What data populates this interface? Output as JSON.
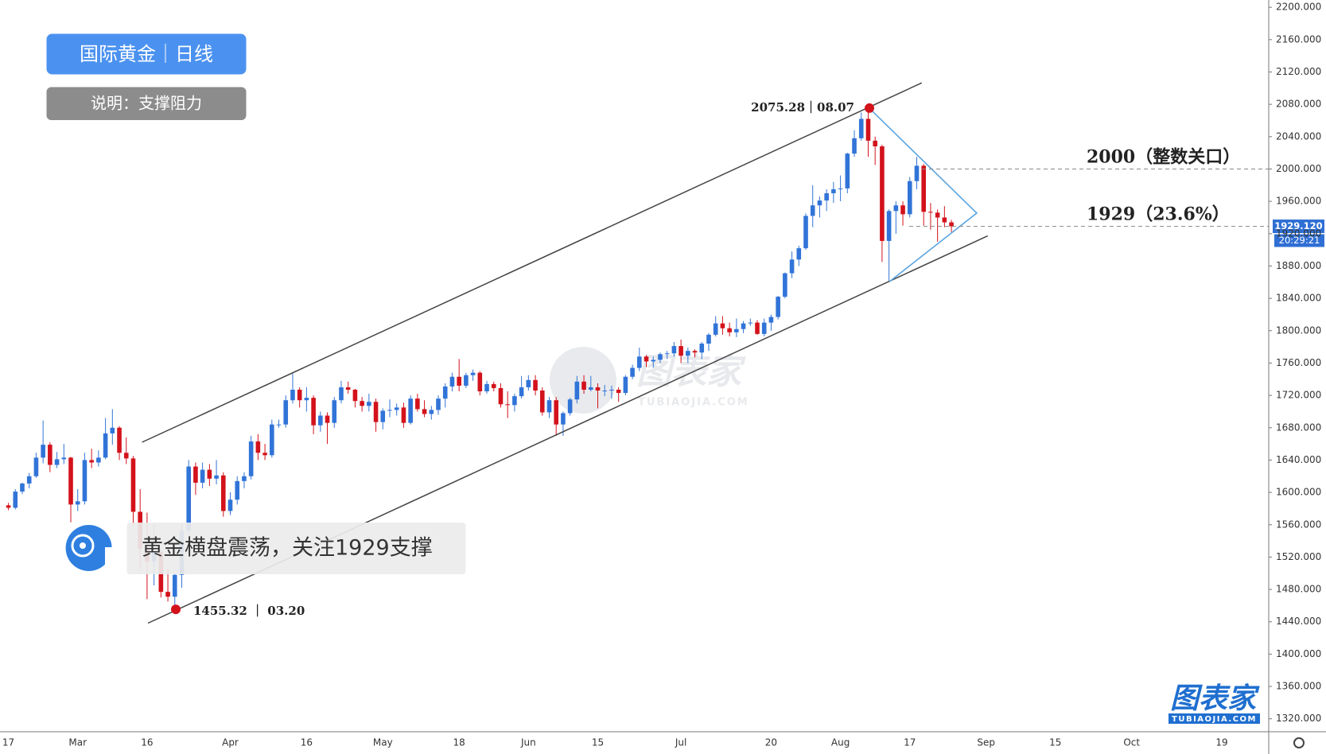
{
  "chart_data": {
    "type": "candlestick",
    "title": "国际黄金｜日线",
    "subtitle": "说明：支撑阻力",
    "caption": "黄金横盘震荡，关注1929支撑",
    "watermark": "图表家",
    "watermark_url": "TUBIAOJIA.COM",
    "up_color": "#3174d8",
    "down_color": "#d3121b",
    "grid": false,
    "ylim": [
      1304,
      2209
    ],
    "yticks": [
      {
        "value": 1320,
        "label": "1320.000"
      },
      {
        "value": 1360,
        "label": "1360.000"
      },
      {
        "value": 1400,
        "label": "1400.000"
      },
      {
        "value": 1440,
        "label": "1440.000"
      },
      {
        "value": 1480,
        "label": "1480.000"
      },
      {
        "value": 1520,
        "label": "1520.000"
      },
      {
        "value": 1560,
        "label": "1560.000"
      },
      {
        "value": 1600,
        "label": "1600.000"
      },
      {
        "value": 1640,
        "label": "1640.000"
      },
      {
        "value": 1680,
        "label": "1680.000"
      },
      {
        "value": 1720,
        "label": "1720.000"
      },
      {
        "value": 1760,
        "label": "1760.000"
      },
      {
        "value": 1800,
        "label": "1800.000"
      },
      {
        "value": 1840,
        "label": "1840.000"
      },
      {
        "value": 1880,
        "label": "1880.000"
      },
      {
        "value": 1920,
        "label": "1920.000"
      },
      {
        "value": 1960,
        "label": "1960.000"
      },
      {
        "value": 2000,
        "label": "2000.000"
      },
      {
        "value": 2040,
        "label": "2040.000"
      },
      {
        "value": 2080,
        "label": "2080.000"
      },
      {
        "value": 2120,
        "label": "2120.000"
      },
      {
        "value": 2160,
        "label": "2160.000"
      },
      {
        "value": 2200,
        "label": "2200.000"
      }
    ],
    "levels": [
      {
        "value": 2000,
        "label": "2000（整数关口）"
      },
      {
        "value": 1929,
        "label": "1929（23.6%）"
      }
    ],
    "last_price": {
      "value": 1929.12,
      "label": "1929.120"
    },
    "timer": "20:29:21",
    "annotations": [
      "2075.28｜08.07",
      "1455.32 ｜ 03.20"
    ],
    "categories": [
      "17",
      null,
      null,
      null,
      null,
      null,
      null,
      null,
      null,
      null,
      "Mar",
      null,
      null,
      null,
      null,
      null,
      null,
      null,
      null,
      null,
      "16",
      null,
      null,
      null,
      null,
      null,
      null,
      null,
      null,
      null,
      null,
      null,
      "Apr",
      null,
      null,
      null,
      null,
      null,
      null,
      null,
      null,
      null,
      null,
      "16",
      null,
      null,
      null,
      null,
      null,
      null,
      null,
      null,
      null,
      null,
      "May",
      null,
      null,
      null,
      null,
      null,
      null,
      null,
      null,
      null,
      null,
      "18",
      null,
      null,
      null,
      null,
      null,
      null,
      null,
      null,
      null,
      "Jun",
      null,
      null,
      null,
      null,
      null,
      null,
      null,
      null,
      null,
      "15",
      null,
      null,
      null,
      null,
      null,
      null,
      null,
      null,
      null,
      null,
      null,
      "Jul",
      null,
      null,
      null,
      null,
      null,
      null,
      null,
      null,
      null,
      null,
      null,
      null,
      "20",
      null,
      null,
      null,
      null,
      null,
      null,
      null,
      null,
      null,
      "Aug",
      null,
      null,
      null,
      null,
      null,
      null,
      null,
      null,
      null,
      "17",
      null,
      null,
      null,
      null,
      null,
      null,
      null,
      null,
      null,
      null,
      "Sep",
      null,
      null,
      null,
      null,
      null,
      null,
      null,
      null,
      null,
      "15",
      null,
      null,
      null,
      null,
      null,
      null,
      null,
      null,
      null,
      null,
      "Oct",
      null,
      null,
      null,
      null,
      null,
      null,
      null,
      null,
      null,
      null,
      null,
      null,
      "19",
      null,
      null,
      null,
      null,
      null,
      null
    ],
    "ohlc": [
      [
        1584,
        1587,
        1578,
        1581
      ],
      [
        1581,
        1604,
        1579,
        1601
      ],
      [
        1601,
        1612,
        1598,
        1611
      ],
      [
        1611,
        1624,
        1605,
        1620
      ],
      [
        1620,
        1649,
        1618,
        1643
      ],
      [
        1643,
        1689,
        1636,
        1659
      ],
      [
        1659,
        1662,
        1625,
        1634
      ],
      [
        1634,
        1650,
        1630,
        1641
      ],
      [
        1641,
        1660,
        1635,
        1643
      ],
      [
        1643,
        1644,
        1563,
        1585
      ],
      [
        1585,
        1604,
        1577,
        1589
      ],
      [
        1589,
        1649,
        1585,
        1640
      ],
      [
        1640,
        1654,
        1630,
        1637
      ],
      [
        1637,
        1652,
        1632,
        1643
      ],
      [
        1643,
        1692,
        1641,
        1673
      ],
      [
        1673,
        1703,
        1659,
        1680
      ],
      [
        1680,
        1682,
        1640,
        1649
      ],
      [
        1649,
        1668,
        1635,
        1642
      ],
      [
        1642,
        1645,
        1559,
        1576
      ],
      [
        1576,
        1604,
        1505,
        1530
      ],
      [
        1530,
        1575,
        1468,
        1514
      ],
      [
        1514,
        1560,
        1485,
        1526
      ],
      [
        1526,
        1530,
        1470,
        1477
      ],
      [
        1477,
        1505,
        1465,
        1471
      ],
      [
        1471,
        1500,
        1455.32,
        1498
      ],
      [
        1498,
        1562,
        1482,
        1553
      ],
      [
        1553,
        1640,
        1546,
        1632
      ],
      [
        1632,
        1637,
        1597,
        1612
      ],
      [
        1612,
        1637,
        1605,
        1628
      ],
      [
        1628,
        1635,
        1608,
        1617
      ],
      [
        1617,
        1640,
        1610,
        1621
      ],
      [
        1621,
        1625,
        1570,
        1577
      ],
      [
        1577,
        1600,
        1572,
        1591
      ],
      [
        1591,
        1620,
        1585,
        1614
      ],
      [
        1614,
        1625,
        1605,
        1620
      ],
      [
        1620,
        1670,
        1616,
        1663
      ],
      [
        1663,
        1672,
        1640,
        1649
      ],
      [
        1649,
        1660,
        1640,
        1646
      ],
      [
        1646,
        1690,
        1643,
        1684
      ],
      [
        1684,
        1690,
        1680,
        1684
      ],
      [
        1684,
        1720,
        1680,
        1714
      ],
      [
        1714,
        1747,
        1710,
        1727
      ],
      [
        1727,
        1730,
        1705,
        1714
      ],
      [
        1714,
        1730,
        1700,
        1717
      ],
      [
        1717,
        1720,
        1672,
        1683
      ],
      [
        1683,
        1700,
        1675,
        1695
      ],
      [
        1695,
        1699,
        1660,
        1686
      ],
      [
        1686,
        1718,
        1680,
        1714
      ],
      [
        1714,
        1738,
        1710,
        1730
      ],
      [
        1730,
        1737,
        1722,
        1727
      ],
      [
        1727,
        1728,
        1705,
        1713
      ],
      [
        1713,
        1718,
        1700,
        1707
      ],
      [
        1707,
        1722,
        1700,
        1712
      ],
      [
        1712,
        1716,
        1675,
        1687
      ],
      [
        1687,
        1704,
        1678,
        1701
      ],
      [
        1701,
        1715,
        1693,
        1702
      ],
      [
        1702,
        1710,
        1695,
        1705
      ],
      [
        1705,
        1711,
        1680,
        1686
      ],
      [
        1686,
        1720,
        1684,
        1716
      ],
      [
        1716,
        1722,
        1700,
        1703
      ],
      [
        1703,
        1714,
        1693,
        1697
      ],
      [
        1697,
        1707,
        1690,
        1702
      ],
      [
        1702,
        1720,
        1696,
        1716
      ],
      [
        1716,
        1735,
        1705,
        1731
      ],
      [
        1731,
        1748,
        1725,
        1743
      ],
      [
        1743,
        1765,
        1725,
        1732
      ],
      [
        1732,
        1748,
        1729,
        1745
      ],
      [
        1745,
        1752,
        1738,
        1748
      ],
      [
        1748,
        1750,
        1720,
        1725
      ],
      [
        1725,
        1738,
        1722,
        1734
      ],
      [
        1734,
        1737,
        1725,
        1729
      ],
      [
        1729,
        1735,
        1705,
        1709
      ],
      [
        1709,
        1725,
        1692,
        1708
      ],
      [
        1708,
        1722,
        1700,
        1719
      ],
      [
        1719,
        1744,
        1716,
        1730
      ],
      [
        1730,
        1745,
        1726,
        1739
      ],
      [
        1739,
        1745,
        1720,
        1726
      ],
      [
        1726,
        1730,
        1695,
        1699
      ],
      [
        1699,
        1718,
        1692,
        1714
      ],
      [
        1714,
        1718,
        1670,
        1684
      ],
      [
        1684,
        1700,
        1670,
        1698
      ],
      [
        1698,
        1717,
        1695,
        1715
      ],
      [
        1715,
        1744,
        1710,
        1737
      ],
      [
        1737,
        1745,
        1722,
        1727
      ],
      [
        1727,
        1744,
        1725,
        1730
      ],
      [
        1730,
        1735,
        1704,
        1726
      ],
      [
        1726,
        1733,
        1719,
        1726
      ],
      [
        1726,
        1732,
        1716,
        1727
      ],
      [
        1727,
        1730,
        1712,
        1723
      ],
      [
        1723,
        1745,
        1720,
        1743
      ],
      [
        1743,
        1758,
        1740,
        1754
      ],
      [
        1754,
        1779,
        1750,
        1768
      ],
      [
        1768,
        1770,
        1755,
        1762
      ],
      [
        1762,
        1768,
        1754,
        1764
      ],
      [
        1764,
        1773,
        1760,
        1771
      ],
      [
        1771,
        1775,
        1765,
        1772
      ],
      [
        1772,
        1786,
        1768,
        1781
      ],
      [
        1781,
        1789,
        1760,
        1769
      ],
      [
        1769,
        1779,
        1760,
        1775
      ],
      [
        1775,
        1777,
        1767,
        1773
      ],
      [
        1773,
        1786,
        1765,
        1784
      ],
      [
        1784,
        1797,
        1775,
        1795
      ],
      [
        1795,
        1818,
        1793,
        1809
      ],
      [
        1809,
        1818,
        1795,
        1803
      ],
      [
        1803,
        1810,
        1793,
        1798
      ],
      [
        1798,
        1815,
        1792,
        1802
      ],
      [
        1802,
        1812,
        1797,
        1809
      ],
      [
        1809,
        1815,
        1806,
        1810
      ],
      [
        1810,
        1813,
        1795,
        1796
      ],
      [
        1796,
        1815,
        1793,
        1810
      ],
      [
        1810,
        1820,
        1800,
        1817
      ],
      [
        1817,
        1843,
        1814,
        1842
      ],
      [
        1842,
        1872,
        1840,
        1871
      ],
      [
        1871,
        1898,
        1865,
        1888
      ],
      [
        1888,
        1905,
        1880,
        1902
      ],
      [
        1902,
        1945,
        1900,
        1942
      ],
      [
        1942,
        1980,
        1928,
        1955
      ],
      [
        1955,
        1966,
        1940,
        1961
      ],
      [
        1961,
        1975,
        1948,
        1970
      ],
      [
        1970,
        1984,
        1958,
        1975
      ],
      [
        1975,
        1992,
        1960,
        1976
      ],
      [
        1976,
        2020,
        1970,
        2019
      ],
      [
        2019,
        2048,
        2015,
        2038
      ],
      [
        2038,
        2070,
        2035,
        2062
      ],
      [
        2062,
        2075.28,
        2015,
        2035
      ],
      [
        2035,
        2040,
        2005,
        2028
      ],
      [
        2028,
        2030,
        1885,
        1911
      ],
      [
        1911,
        1950,
        1862,
        1948
      ],
      [
        1948,
        1960,
        1920,
        1955
      ],
      [
        1955,
        1960,
        1930,
        1944
      ],
      [
        1944,
        1990,
        1940,
        1985
      ],
      [
        1985,
        2015,
        1975,
        2004
      ],
      [
        2004,
        2006,
        1930,
        1947
      ],
      [
        1947,
        1958,
        1925,
        1946
      ],
      [
        1946,
        1950,
        1910,
        1940
      ],
      [
        1940,
        1954,
        1928,
        1934
      ],
      [
        1934,
        1937,
        1922,
        1929.12
      ],
      null,
      null,
      null,
      null,
      null,
      null,
      null,
      null,
      null,
      null,
      null,
      null,
      null,
      null,
      null,
      null,
      null,
      null,
      null,
      null,
      null,
      null,
      null,
      null,
      null,
      null,
      null,
      null,
      null,
      null,
      null,
      null,
      null,
      null,
      null,
      null,
      null,
      null,
      null,
      null,
      null,
      null,
      null,
      null,
      null
    ]
  }
}
